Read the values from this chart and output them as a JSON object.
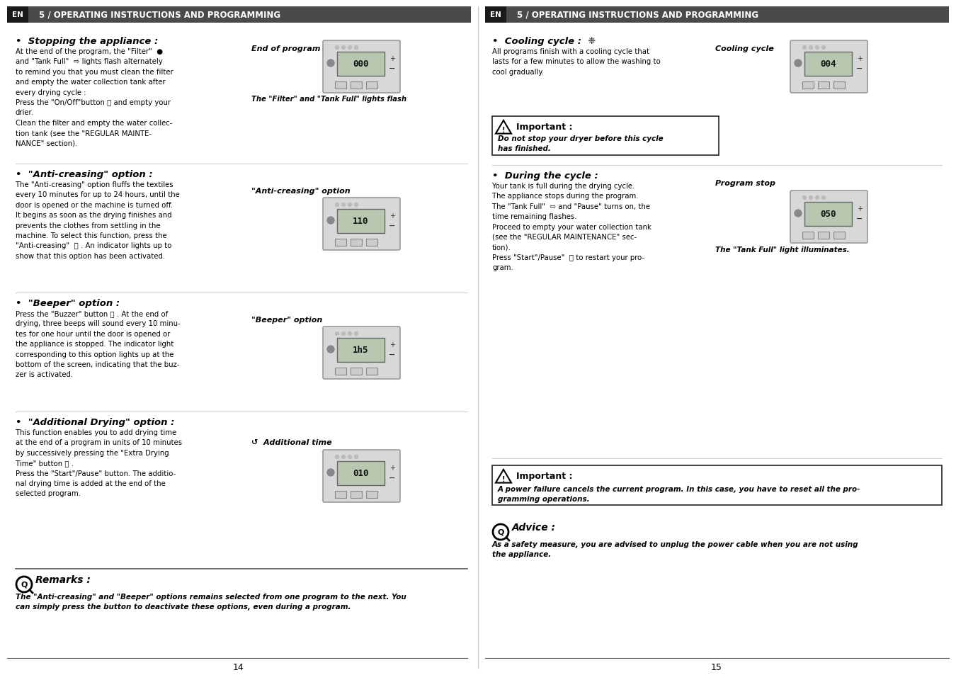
{
  "bg_color": "#ffffff",
  "header_color": "#4a4a4a",
  "header_en_bg": "#1a1a1a",
  "title": "5 / OPERATING INSTRUCTIONS AND PROGRAMMING",
  "left_page_num": "14",
  "right_page_num": "15"
}
